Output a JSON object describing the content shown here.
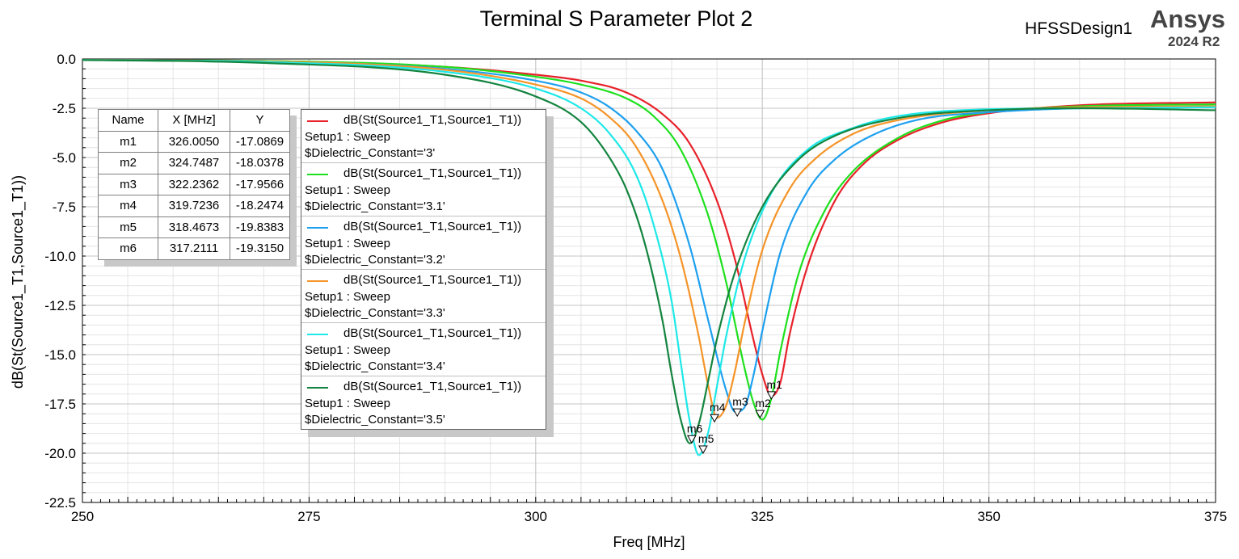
{
  "title": "Terminal S Parameter Plot 2",
  "design_name": "HFSSDesign1",
  "brand": "Ansys",
  "version": "2024 R2",
  "chart_data": {
    "type": "line",
    "title": "Terminal S Parameter Plot 2",
    "xlabel": "Freq [MHz]",
    "ylabel": "dB(St(Source1_T1,Source1_T1))",
    "xlim": [
      250,
      375
    ],
    "ylim": [
      -22.5,
      0
    ],
    "xticks": [
      "250",
      "275",
      "300",
      "325",
      "350",
      "375"
    ],
    "yticks": [
      "0.0",
      "-2.5",
      "-5.0",
      "-7.5",
      "-10.0",
      "-12.5",
      "-15.0",
      "-17.5",
      "-20.0",
      "-22.5"
    ],
    "grid": true,
    "series": [
      {
        "name": "dB(St(Source1_T1,Source1_T1))",
        "setup": "Setup1 : Sweep",
        "variable": "$Dielectric_Constant='3'",
        "color": "#e8212a",
        "x": [
          250,
          270,
          290,
          300,
          305,
          310,
          314,
          317,
          320,
          322,
          324,
          325,
          326,
          327,
          328,
          330,
          333,
          336,
          340,
          345,
          350,
          360,
          375
        ],
        "y": [
          -0.05,
          -0.1,
          -0.4,
          -0.8,
          -1.1,
          -1.7,
          -2.8,
          -4.3,
          -7.2,
          -10.2,
          -14.2,
          -16.0,
          -17.1,
          -16.4,
          -14.0,
          -10.5,
          -7.2,
          -5.4,
          -4.1,
          -3.2,
          -2.75,
          -2.35,
          -2.2
        ]
      },
      {
        "name": "dB(St(Source1_T1,Source1_T1))",
        "setup": "Setup1 : Sweep",
        "variable": "$Dielectric_Constant='3.1'",
        "color": "#1ee01e",
        "x": [
          250,
          270,
          290,
          300,
          305,
          310,
          313,
          316,
          319,
          321,
          323,
          324,
          325,
          326,
          327,
          329,
          332,
          335,
          340,
          345,
          350,
          360,
          375
        ],
        "y": [
          -0.05,
          -0.1,
          -0.4,
          -0.9,
          -1.3,
          -2.0,
          -2.9,
          -4.6,
          -7.9,
          -11.3,
          -15.6,
          -17.4,
          -18.3,
          -17.2,
          -14.8,
          -10.9,
          -7.6,
          -5.7,
          -4.0,
          -3.1,
          -2.7,
          -2.4,
          -2.3
        ]
      },
      {
        "name": "dB(St(Source1_T1,Source1_T1))",
        "setup": "Setup1 : Sweep",
        "variable": "$Dielectric_Constant='3.2'",
        "color": "#1ea0ef",
        "x": [
          250,
          270,
          290,
          300,
          305,
          308,
          311,
          314,
          317,
          319,
          321,
          322,
          323,
          324,
          325,
          327,
          330,
          333,
          337,
          342,
          350,
          360,
          375
        ],
        "y": [
          -0.05,
          -0.12,
          -0.5,
          -1.1,
          -1.7,
          -2.4,
          -3.6,
          -5.6,
          -9.5,
          -13.2,
          -16.8,
          -17.9,
          -17.7,
          -16.1,
          -13.8,
          -9.8,
          -6.7,
          -5.1,
          -3.9,
          -3.1,
          -2.7,
          -2.5,
          -2.4
        ]
      },
      {
        "name": "dB(St(Source1_T1,Source1_T1))",
        "setup": "Setup1 : Sweep",
        "variable": "$Dielectric_Constant='3.3'",
        "color": "#f59428",
        "x": [
          250,
          270,
          290,
          300,
          305,
          308,
          311,
          314,
          316,
          318,
          319,
          320,
          321,
          322,
          323,
          325,
          328,
          331,
          335,
          340,
          350,
          360,
          375
        ],
        "y": [
          -0.05,
          -0.12,
          -0.55,
          -1.3,
          -2.0,
          -2.9,
          -4.4,
          -7.2,
          -10.1,
          -14.1,
          -16.5,
          -18.2,
          -17.6,
          -15.8,
          -13.5,
          -9.7,
          -6.6,
          -5.0,
          -3.8,
          -3.1,
          -2.6,
          -2.45,
          -2.4
        ]
      },
      {
        "name": "dB(St(Source1_T1,Source1_T1))",
        "setup": "Setup1 : Sweep",
        "variable": "$Dielectric_Constant='3.4'",
        "color": "#1ee8e8",
        "x": [
          250,
          270,
          290,
          300,
          305,
          308,
          311,
          313,
          315,
          316,
          317,
          318,
          319,
          320,
          321,
          323,
          326,
          330,
          335,
          340,
          350,
          360,
          375
        ],
        "y": [
          -0.05,
          -0.15,
          -0.65,
          -1.5,
          -2.5,
          -3.7,
          -5.8,
          -8.4,
          -12.3,
          -15.4,
          -18.4,
          -20.1,
          -19.0,
          -16.6,
          -14.1,
          -10.2,
          -6.8,
          -4.6,
          -3.5,
          -2.9,
          -2.55,
          -2.5,
          -2.45
        ]
      },
      {
        "name": "dB(St(Source1_T1,Source1_T1))",
        "setup": "Setup1 : Sweep",
        "variable": "$Dielectric_Constant='3.5'",
        "color": "#13843f",
        "x": [
          250,
          270,
          290,
          300,
          305,
          308,
          310,
          312,
          314,
          315,
          316,
          317,
          318,
          319,
          320,
          322,
          325,
          329,
          333,
          340,
          350,
          360,
          375
        ],
        "y": [
          -0.05,
          -0.2,
          -0.8,
          -1.9,
          -3.2,
          -4.9,
          -6.6,
          -9.3,
          -13.3,
          -16.0,
          -18.3,
          -19.5,
          -18.5,
          -16.4,
          -14.2,
          -10.8,
          -7.5,
          -5.1,
          -3.9,
          -3.0,
          -2.6,
          -2.5,
          -2.6
        ]
      }
    ],
    "markers": [
      {
        "name": "m1",
        "x": "326.0050",
        "y": "-17.0869"
      },
      {
        "name": "m2",
        "x": "324.7487",
        "y": "-18.0378"
      },
      {
        "name": "m3",
        "x": "322.2362",
        "y": "-17.9566"
      },
      {
        "name": "m4",
        "x": "319.7236",
        "y": "-18.2474"
      },
      {
        "name": "m5",
        "x": "318.4673",
        "y": "-19.8383"
      },
      {
        "name": "m6",
        "x": "317.2111",
        "y": "-19.3150"
      }
    ],
    "marker_table_headers": [
      "Name",
      "X [MHz]",
      "Y"
    ]
  }
}
